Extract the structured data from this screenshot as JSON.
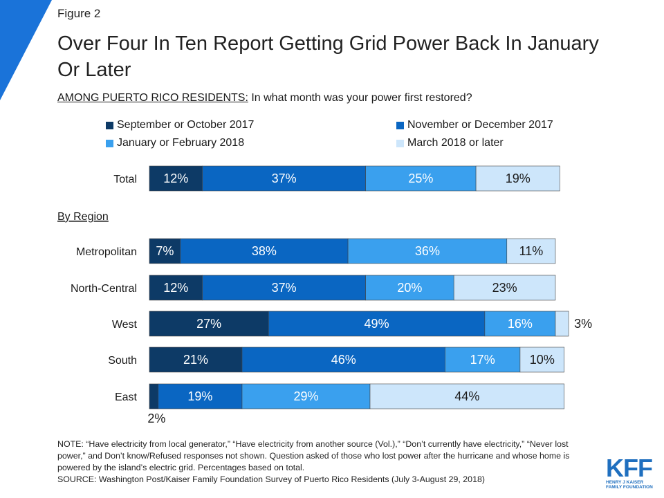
{
  "figure_label": "Figure 2",
  "title": "Over Four In Ten Report Getting Grid Power Back In January Or Later",
  "subtitle": {
    "prefix": "AMONG PUERTO RICO RESIDENTS:",
    "question": " In what month was your power first restored?"
  },
  "colors": {
    "accent": "#1a73d9",
    "series": [
      "#0d3a66",
      "#0a66c2",
      "#3aa0ee",
      "#cde6fb"
    ],
    "label_light": "#ffffff",
    "label_dark": "#1a1a1a"
  },
  "chart_data": {
    "type": "bar",
    "orientation": "horizontal",
    "stacked": true,
    "unit": "%",
    "series_names": [
      "September or October 2017",
      "November or December 2017",
      "January or February 2018",
      "March 2018 or later"
    ],
    "section_label": "By Region",
    "rows": [
      {
        "category": "Total",
        "values": [
          12,
          37,
          25,
          19
        ],
        "labels": [
          "12%",
          "37%",
          "25%",
          "19%"
        ]
      },
      {
        "category": "Metropolitan",
        "values": [
          7,
          38,
          36,
          11
        ],
        "labels": [
          "7%",
          "38%",
          "36%",
          "11%"
        ]
      },
      {
        "category": "North-Central",
        "values": [
          12,
          37,
          20,
          23
        ],
        "labels": [
          "12%",
          "37%",
          "20%",
          "23%"
        ]
      },
      {
        "category": "West",
        "values": [
          27,
          49,
          16,
          3
        ],
        "labels": [
          "27%",
          "49%",
          "16%",
          "3%"
        ]
      },
      {
        "category": "South",
        "values": [
          21,
          46,
          17,
          10
        ],
        "labels": [
          "21%",
          "46%",
          "17%",
          "10%"
        ]
      },
      {
        "category": "East",
        "values": [
          2,
          19,
          29,
          44
        ],
        "labels": [
          "2%",
          "19%",
          "29%",
          "44%"
        ]
      }
    ]
  },
  "notes": "NOTE: “Have electricity from local generator,” “Have electricity from another source (Vol.),” “Don’t currently have electricity,” “Never lost power,” and Don’t know/Refused responses not shown. Question asked of those who lost power after the hurricane and whose home is powered by the island’s electric grid. Percentages based on total.",
  "source": "SOURCE: Washington Post/Kaiser Family Foundation Survey of Puerto Rico Residents (July 3-August 29, 2018)",
  "logo": {
    "mark": "KFF",
    "line1": "HENRY J KAISER",
    "line2": "FAMILY FOUNDATION"
  }
}
